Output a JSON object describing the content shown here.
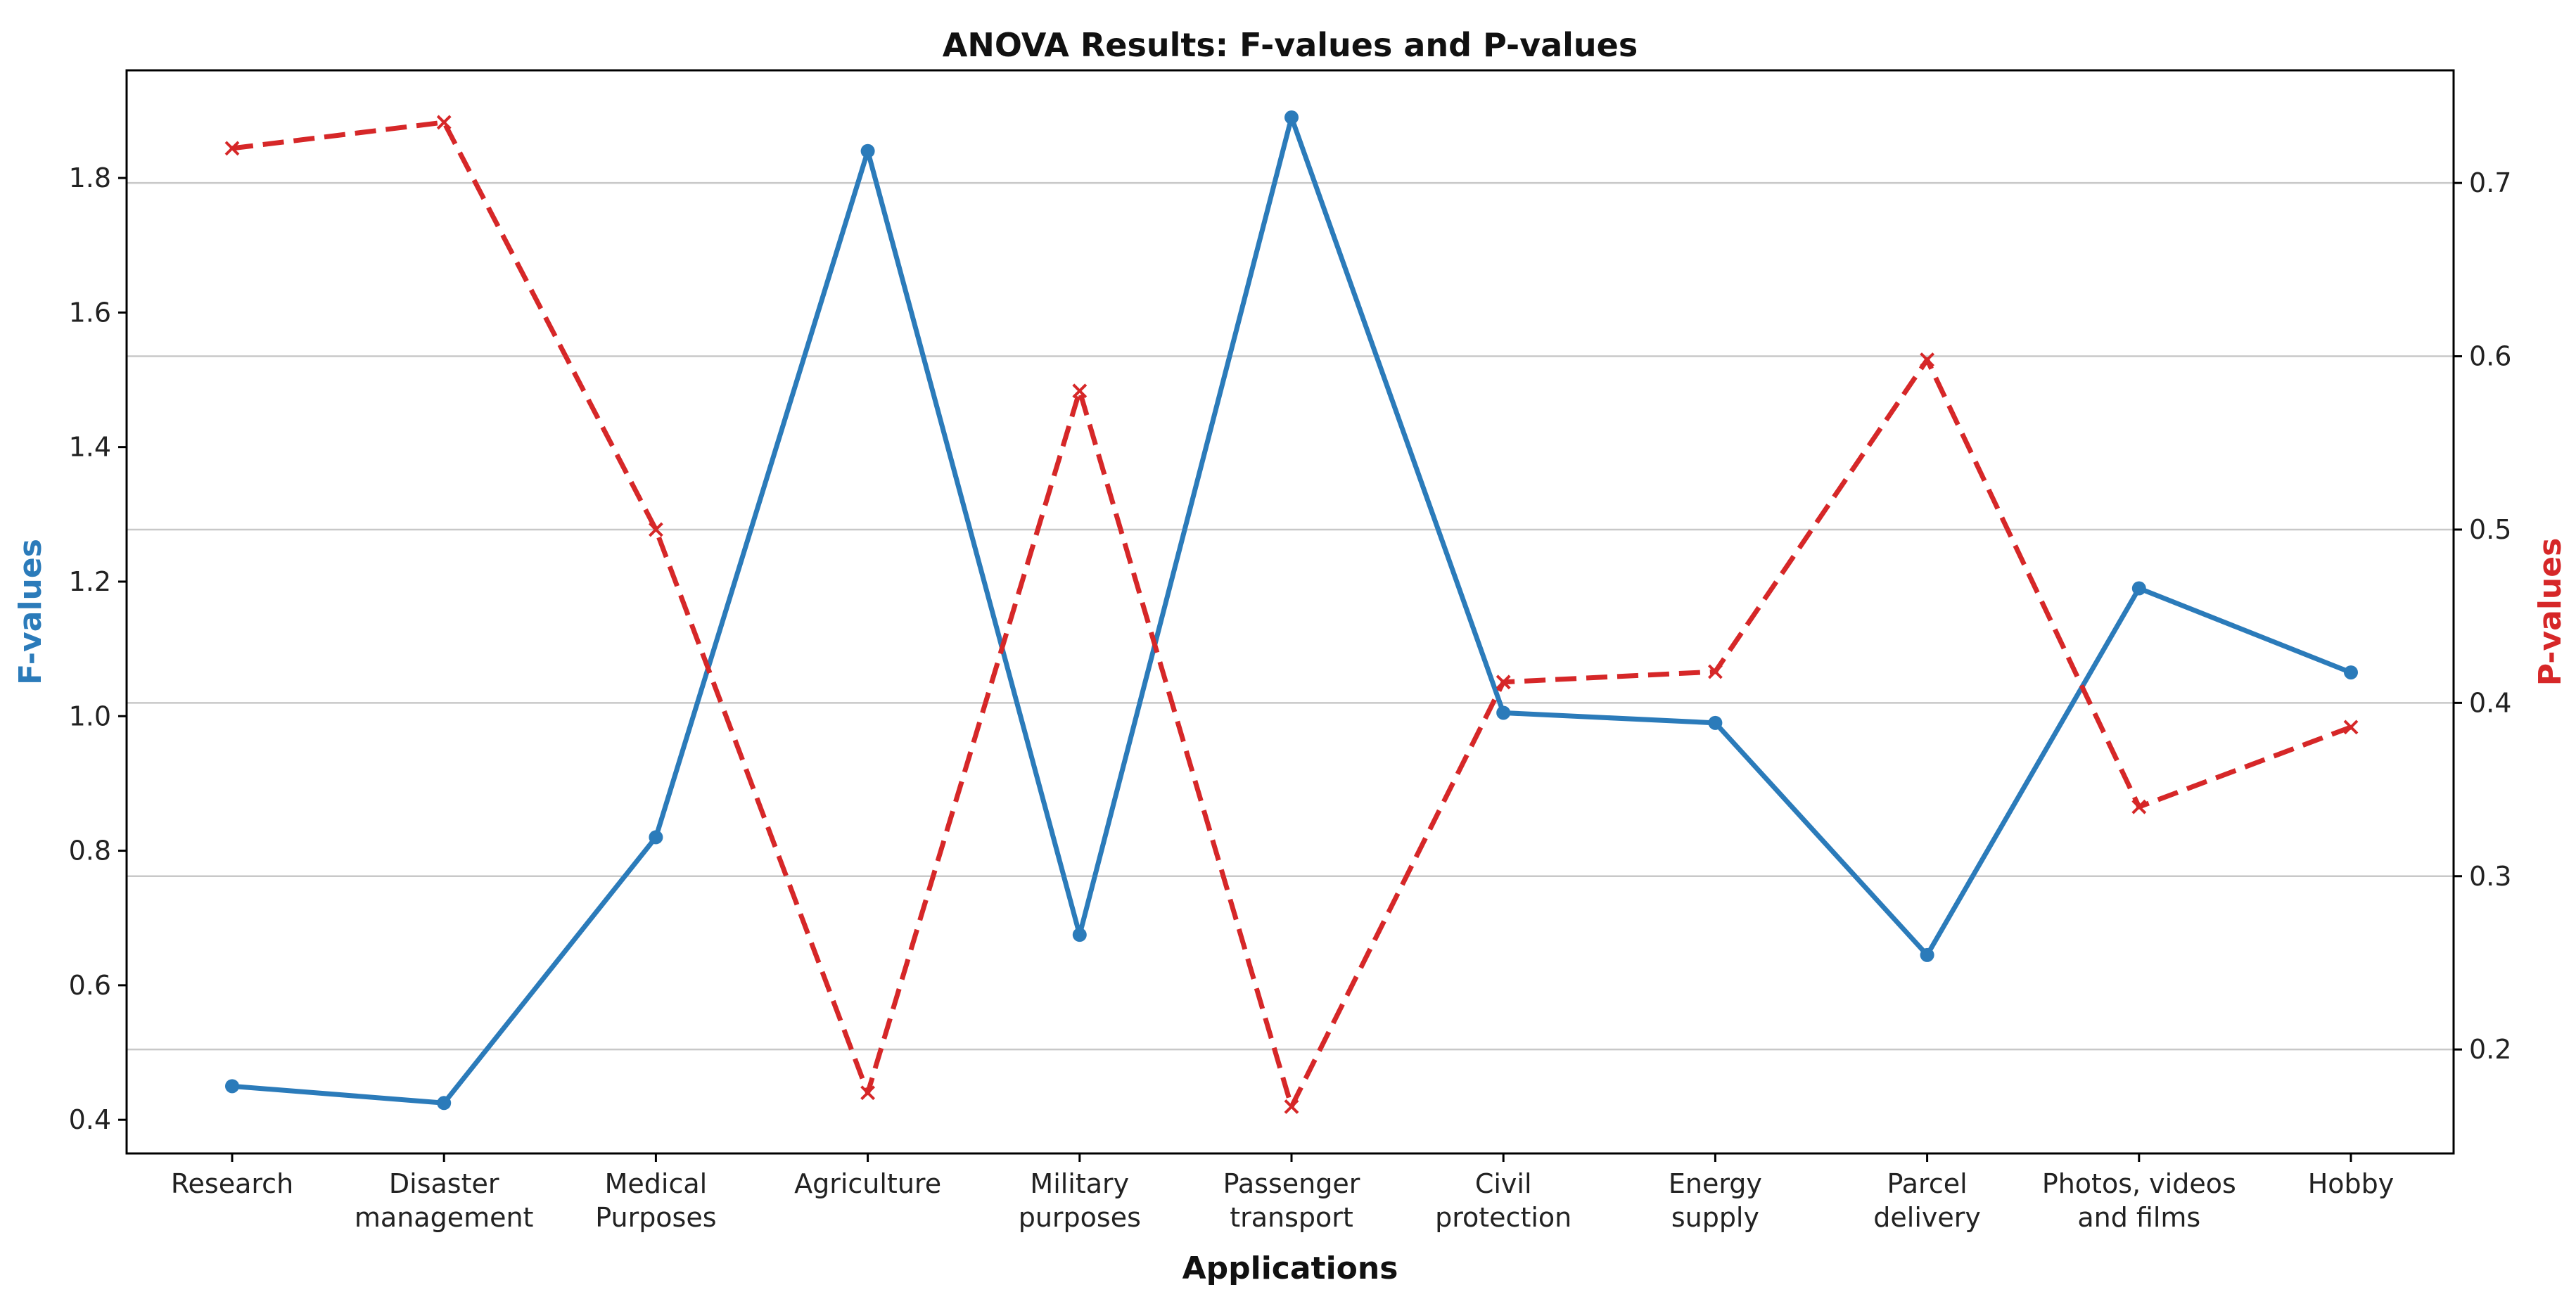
{
  "chart_data": {
    "type": "line",
    "title": "ANOVA Results: F-values and P-values",
    "xlabel": "Applications",
    "ylabel_left": "F-values",
    "ylabel_right": "P-values",
    "categories": [
      [
        "Research"
      ],
      [
        "Disaster",
        "management"
      ],
      [
        "Medical",
        "Purposes"
      ],
      [
        "Agriculture"
      ],
      [
        "Military",
        "purposes"
      ],
      [
        "Passenger",
        "transport"
      ],
      [
        "Civil",
        "protection"
      ],
      [
        "Energy",
        "supply"
      ],
      [
        "Parcel",
        "delivery"
      ],
      [
        "Photos, videos",
        "and films"
      ],
      [
        "Hobby"
      ]
    ],
    "series": [
      {
        "name": "F-values",
        "axis": "left",
        "color": "#2b7bba",
        "marker": "circle",
        "linestyle": "solid",
        "values": [
          0.45,
          0.425,
          0.82,
          1.84,
          0.675,
          1.89,
          1.005,
          0.99,
          0.645,
          1.19,
          1.065
        ]
      },
      {
        "name": "P-values",
        "axis": "right",
        "color": "#d62728",
        "marker": "x",
        "linestyle": "dashed",
        "values": [
          0.72,
          0.735,
          0.5,
          0.175,
          0.58,
          0.167,
          0.412,
          0.418,
          0.598,
          0.34,
          0.386
        ]
      }
    ],
    "left_axis": {
      "ylim": [
        0.35,
        1.96
      ],
      "ticks": [
        0.4,
        0.6,
        0.8,
        1.0,
        1.2,
        1.4,
        1.6,
        1.8
      ],
      "tick_labels": [
        "0.4",
        "0.6",
        "0.8",
        "1.0",
        "1.2",
        "1.4",
        "1.6",
        "1.8"
      ]
    },
    "right_axis": {
      "ylim": [
        0.14,
        0.765
      ],
      "ticks": [
        0.2,
        0.3,
        0.4,
        0.5,
        0.6,
        0.7
      ],
      "tick_labels": [
        "0.2",
        "0.3",
        "0.4",
        "0.5",
        "0.6",
        "0.7"
      ]
    },
    "grid": "horizontal, at right-axis ticks"
  }
}
